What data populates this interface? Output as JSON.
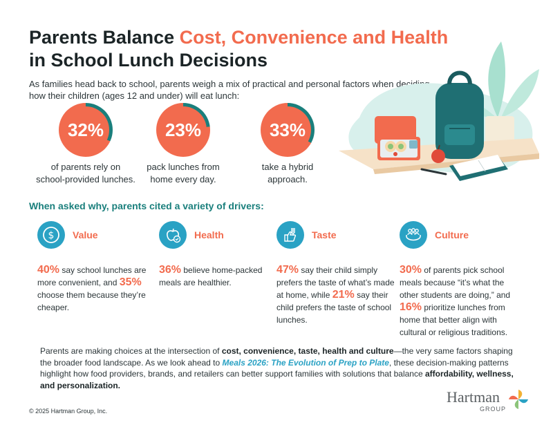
{
  "title": {
    "part1": "Parents Balance ",
    "accent": "Cost, Convenience and Health",
    "part2": "in School Lunch Decisions"
  },
  "intro": "As families head back to school, parents weigh a mix of practical and personal factors when deciding how their children (ages 12 and under) will eat lunch:",
  "stats": [
    {
      "value": "32%",
      "fraction": 0.32,
      "caption_line1": "of parents rely on",
      "caption_line2": "school-provided lunches."
    },
    {
      "value": "23%",
      "fraction": 0.23,
      "caption_line1": "pack lunches from",
      "caption_line2": "home every day."
    },
    {
      "value": "33%",
      "fraction": 0.33,
      "caption_line1": "take a hybrid",
      "caption_line2": "approach."
    }
  ],
  "drivers_heading": "When asked why, parents cited a variety of drivers:",
  "drivers": [
    {
      "label": "Value",
      "icon": "dollar-icon",
      "stat1": "40%",
      "text1": " say school lunches are more convenient, and ",
      "stat2": "35%",
      "text2": " choose them because they’re cheaper.",
      "stat3": "",
      "text3": ""
    },
    {
      "label": "Health",
      "icon": "apple-check-icon",
      "stat1": "36%",
      "text1": " believe home-packed meals are healthier.",
      "stat2": "",
      "text2": "",
      "stat3": "",
      "text3": ""
    },
    {
      "label": "Taste",
      "icon": "fork-thumbs-up-icon",
      "stat1": "47%",
      "text1": " say their child simply prefers the taste of what’s made at home, while ",
      "stat2": "21%",
      "text2": " say their child prefers the taste of school lunches.",
      "stat3": "",
      "text3": ""
    },
    {
      "label": "Culture",
      "icon": "people-hands-icon",
      "stat1": "30%",
      "text1": " of parents pick school meals because “it’s what the other students are doing,” and ",
      "stat2": "16%",
      "text2": " prioritize lunches from home that better align with cultural or religious traditions.",
      "stat3": "",
      "text3": ""
    }
  ],
  "summary": {
    "t1": "Parents are making choices at the intersection of ",
    "b1": "cost, convenience, taste, health and culture",
    "t2": "—the very same factors shaping the broader food landscape. As we look ahead to ",
    "link": "Meals 2026: The Evolution of Prep to Plate",
    "t3": ", these decision-making patterns highlight how food providers, brands, and retailers can better support families with solutions that balance ",
    "b2": "affordability, wellness, and personalization.",
    "t4": ""
  },
  "copyright": "© 2025 Hartman Group, Inc.",
  "logo": {
    "name": "Hartman",
    "group": "GROUP"
  },
  "colors": {
    "coral": "#f26b4e",
    "teal": "#1a7f7c",
    "blue_icon": "#2aa2c4",
    "text": "#2b3538"
  }
}
